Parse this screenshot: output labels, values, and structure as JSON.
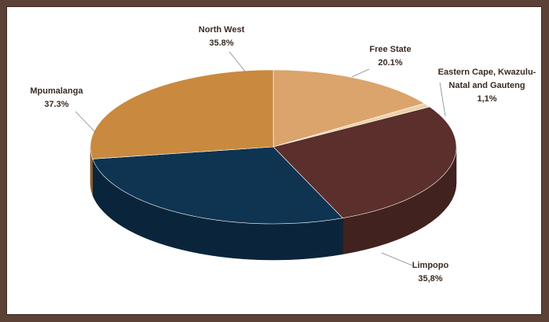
{
  "chart_data": {
    "type": "pie",
    "categories": [
      "Free State",
      "Eastern Cape, Kwazulu-Natal and Gauteng",
      "Limpopo",
      "Mpumalanga",
      "North West"
    ],
    "values": [
      20.1,
      1.1,
      35.8,
      37.3,
      35.8
    ],
    "value_labels": [
      "20.1%",
      "1,1%",
      "35,8%",
      "37.3%",
      "35.8%"
    ],
    "colors": [
      "#dba46c",
      "#ecd2a8",
      "#5b2f2b",
      "#0e3452",
      "#c98a3f"
    ]
  }
}
